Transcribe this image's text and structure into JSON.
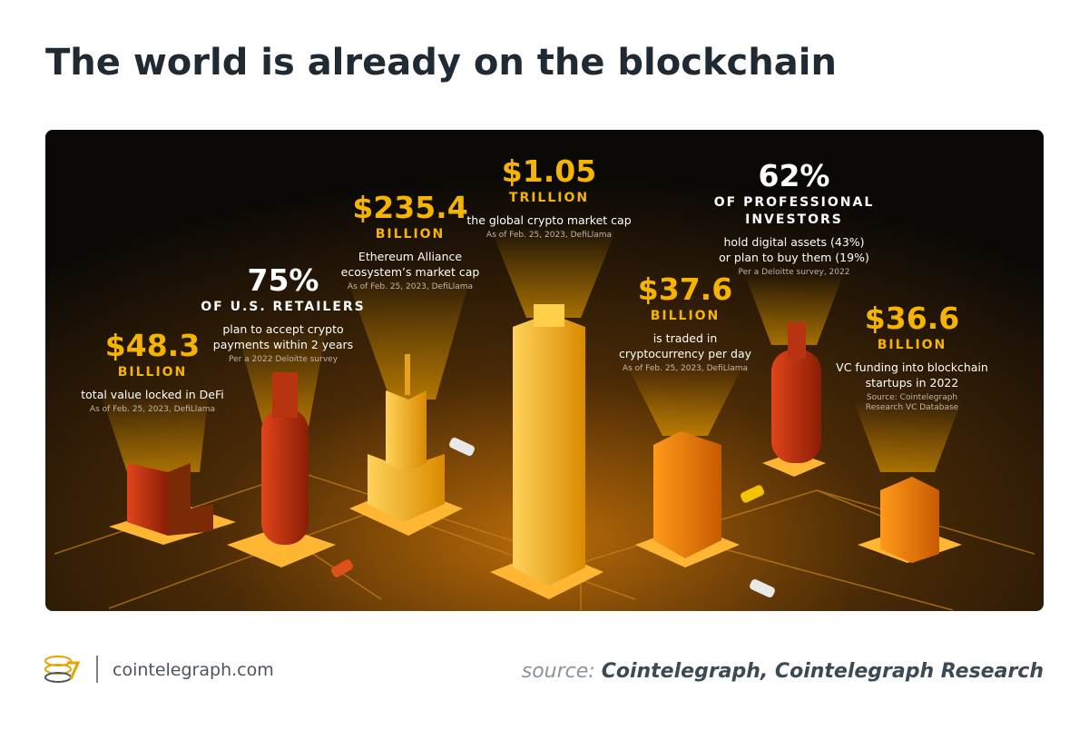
{
  "header": {
    "title": "The world is already on the blockchain"
  },
  "stats": [
    {
      "value": "$48.3",
      "unit": [
        "BILLION"
      ],
      "description": [
        "total value locked in DeFi"
      ],
      "source": [
        "As of Feb. 25, 2023, DefiLlama"
      ]
    },
    {
      "value": "75%",
      "unit": [
        "OF U.S. RETAILERS"
      ],
      "description": [
        "plan to accept crypto",
        "payments within 2 years"
      ],
      "source": [
        "Per a 2022 Deloitte survey"
      ]
    },
    {
      "value": "$235.4",
      "unit": [
        "BILLION"
      ],
      "description": [
        "Ethereum Alliance",
        "ecosystem’s market cap"
      ],
      "source": [
        "As of Feb. 25, 2023, DefiLlama"
      ]
    },
    {
      "value": "$1.05",
      "unit": [
        "TRILLION"
      ],
      "description": [
        "the global crypto market cap"
      ],
      "source": [
        "As of Feb. 25, 2023, DefiLlama"
      ]
    },
    {
      "value": "62%",
      "unit": [
        "OF PROFESSIONAL",
        "INVESTORS"
      ],
      "description": [
        "hold digital assets (43%)",
        "or plan to buy them (19%)"
      ],
      "source": [
        "Per a Deloitte survey, 2022"
      ]
    },
    {
      "value": "$37.6",
      "unit": [
        "BILLION"
      ],
      "description": [
        "is traded in",
        "cryptocurrency per day"
      ],
      "source": [
        "As of Feb. 25, 2023, DefiLlama"
      ]
    },
    {
      "value": "$36.6",
      "unit": [
        "BILLION"
      ],
      "description": [
        "VC funding into blockchain",
        "startups in 2022"
      ],
      "source": [
        "Source: Cointelegraph",
        "Research VC Database"
      ]
    }
  ],
  "footer": {
    "site": "cointelegraph.com",
    "source_label": "source:",
    "source_text": "Cointelegraph, Cointelegraph Research"
  }
}
